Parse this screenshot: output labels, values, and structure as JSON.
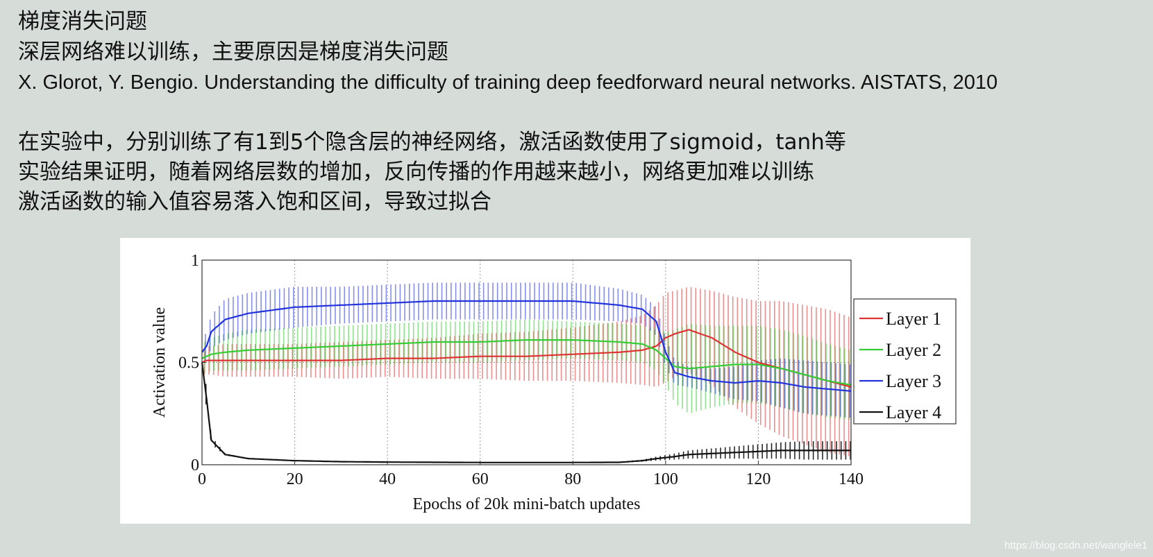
{
  "text": {
    "heading": "梯度消失问题",
    "line1": "深层网络难以训练，主要原因是梯度消失问题",
    "reference": "X. Glorot, Y. Bengio. Understanding the difficulty of training deep feedforward neural networks. AISTATS, 2010",
    "para1": "在实验中，分别训练了有1到5个隐含层的神经网络，激活函数使用了sigmoid，tanh等",
    "para2": "实验结果证明，随着网络层数的增加，反向传播的作用越来越小，网络更加难以训练",
    "para3": "激活函数的输入值容易落入饱和区间，导致过拟合"
  },
  "watermark": "https://blog.csdn.net/wanglele1",
  "chart_data": {
    "type": "line",
    "title": "",
    "xlabel": "Epochs of 20k mini-batch updates",
    "ylabel": "Activation value",
    "xlim": [
      0,
      140
    ],
    "ylim": [
      0,
      1
    ],
    "xticks": [
      0,
      20,
      40,
      60,
      80,
      100,
      120,
      140
    ],
    "yticks": [
      0,
      0.5,
      1
    ],
    "ytick_labels": [
      "0",
      "0.5",
      "1"
    ],
    "grid": true,
    "legend_position": "right",
    "error_bars": true,
    "x": [
      0,
      1,
      2,
      5,
      10,
      20,
      30,
      40,
      50,
      60,
      70,
      80,
      90,
      95,
      98,
      100,
      102,
      105,
      110,
      115,
      120,
      125,
      130,
      135,
      140
    ],
    "series": [
      {
        "name": "Layer 1",
        "color": "#dd3333",
        "values": [
          0.5,
          0.51,
          0.51,
          0.51,
          0.51,
          0.51,
          0.51,
          0.52,
          0.52,
          0.53,
          0.53,
          0.54,
          0.55,
          0.56,
          0.58,
          0.62,
          0.64,
          0.66,
          0.62,
          0.55,
          0.5,
          0.47,
          0.44,
          0.41,
          0.38
        ],
        "spread": [
          0.06,
          0.07,
          0.07,
          0.08,
          0.08,
          0.08,
          0.09,
          0.09,
          0.1,
          0.11,
          0.12,
          0.13,
          0.15,
          0.17,
          0.2,
          0.22,
          0.21,
          0.21,
          0.23,
          0.27,
          0.3,
          0.33,
          0.34,
          0.35,
          0.34
        ]
      },
      {
        "name": "Layer 2",
        "color": "#33cc33",
        "values": [
          0.52,
          0.53,
          0.54,
          0.55,
          0.56,
          0.57,
          0.58,
          0.59,
          0.6,
          0.6,
          0.61,
          0.61,
          0.6,
          0.59,
          0.56,
          0.52,
          0.48,
          0.47,
          0.48,
          0.49,
          0.49,
          0.47,
          0.44,
          0.41,
          0.39
        ],
        "spread": [
          0.07,
          0.08,
          0.08,
          0.09,
          0.1,
          0.1,
          0.1,
          0.1,
          0.1,
          0.1,
          0.1,
          0.09,
          0.09,
          0.09,
          0.1,
          0.13,
          0.18,
          0.22,
          0.2,
          0.19,
          0.19,
          0.19,
          0.19,
          0.18,
          0.17
        ]
      },
      {
        "name": "Layer 3",
        "color": "#2233dd",
        "values": [
          0.55,
          0.58,
          0.65,
          0.71,
          0.74,
          0.77,
          0.78,
          0.79,
          0.8,
          0.8,
          0.8,
          0.8,
          0.78,
          0.76,
          0.7,
          0.55,
          0.45,
          0.43,
          0.41,
          0.4,
          0.41,
          0.4,
          0.38,
          0.37,
          0.36
        ],
        "spread": [
          0.06,
          0.07,
          0.08,
          0.1,
          0.1,
          0.1,
          0.09,
          0.09,
          0.09,
          0.09,
          0.09,
          0.09,
          0.08,
          0.07,
          0.07,
          0.07,
          0.06,
          0.05,
          0.06,
          0.08,
          0.1,
          0.12,
          0.13,
          0.13,
          0.13
        ]
      },
      {
        "name": "Layer 4",
        "color": "#111111",
        "values": [
          0.5,
          0.32,
          0.12,
          0.05,
          0.03,
          0.02,
          0.015,
          0.013,
          0.012,
          0.011,
          0.011,
          0.011,
          0.012,
          0.02,
          0.03,
          0.035,
          0.04,
          0.05,
          0.055,
          0.06,
          0.065,
          0.07,
          0.07,
          0.07,
          0.07
        ],
        "spread": [
          0.05,
          0.05,
          0.02,
          0.005,
          0.003,
          0.002,
          0.002,
          0.002,
          0.002,
          0.002,
          0.002,
          0.002,
          0.003,
          0.005,
          0.01,
          0.012,
          0.015,
          0.02,
          0.025,
          0.03,
          0.035,
          0.04,
          0.045,
          0.045,
          0.045
        ]
      }
    ]
  }
}
